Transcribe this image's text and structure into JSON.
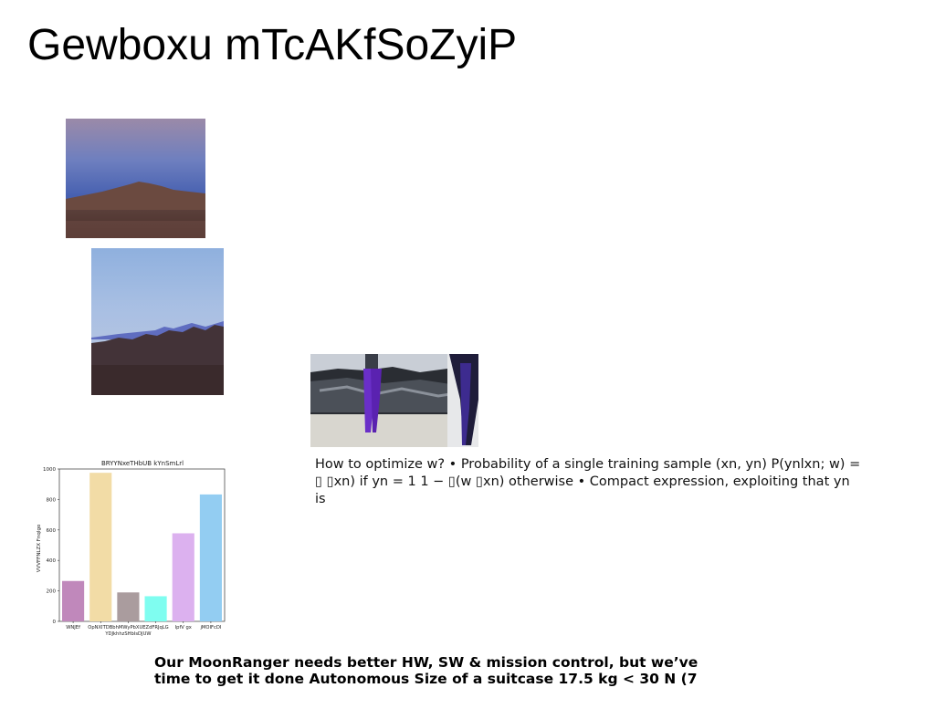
{
  "slide": {
    "title": "Gewboxu mTcAKfSoZyiP",
    "body_text": "How to optimize w? • Probability of a single training sample (xn, yn) P(ynlxn; w) = ▯ ▯xn) if yn = 1 1 − ▯(w ▯xn) otherwise • Compact expression, exploiting that yn is",
    "caption": "Our MoonRanger needs better HW, SW & mission control, but we’ve time to get it done Autonomous Size of a suitcase 17.5 kg < 30 N (7"
  },
  "images": [
    {
      "name": "mountain-sunset-photo"
    },
    {
      "name": "mountain-ridge-photo"
    },
    {
      "name": "dancers-on-rocks-photo"
    }
  ],
  "chart_data": {
    "type": "bar",
    "title": "BRYYNxeTHbUB kYnSmLrl",
    "xlabel": "",
    "ylabel": "VVVFFNLZX Fnqlgo",
    "categories": [
      "WNJEf",
      "OpNXITDBbhM",
      "WyPbXUEZdFRJqLG\nYDJkhhzSHbIsDJUW",
      "",
      "IpfV gx",
      "jMOIFcDI"
    ],
    "tick_labels": [
      "WNJEf",
      "OpNXITDBbhMWyPbXUEZdFRJqLG",
      "",
      "",
      "IpfV gx",
      "jMOIFcDI"
    ],
    "tick_label_second_line": "YDJkhhzSHbIsDJUW",
    "values": [
      265,
      975,
      190,
      165,
      578,
      833
    ],
    "colors": [
      "#c088bb",
      "#f2dca6",
      "#aa9c9e",
      "#7ffdf0",
      "#dcb1ef",
      "#93cdf2"
    ],
    "ylim": [
      0,
      1000
    ],
    "yticks": [
      "0",
      "200",
      "400",
      "600",
      "800",
      "1000"
    ],
    "grid": false
  }
}
